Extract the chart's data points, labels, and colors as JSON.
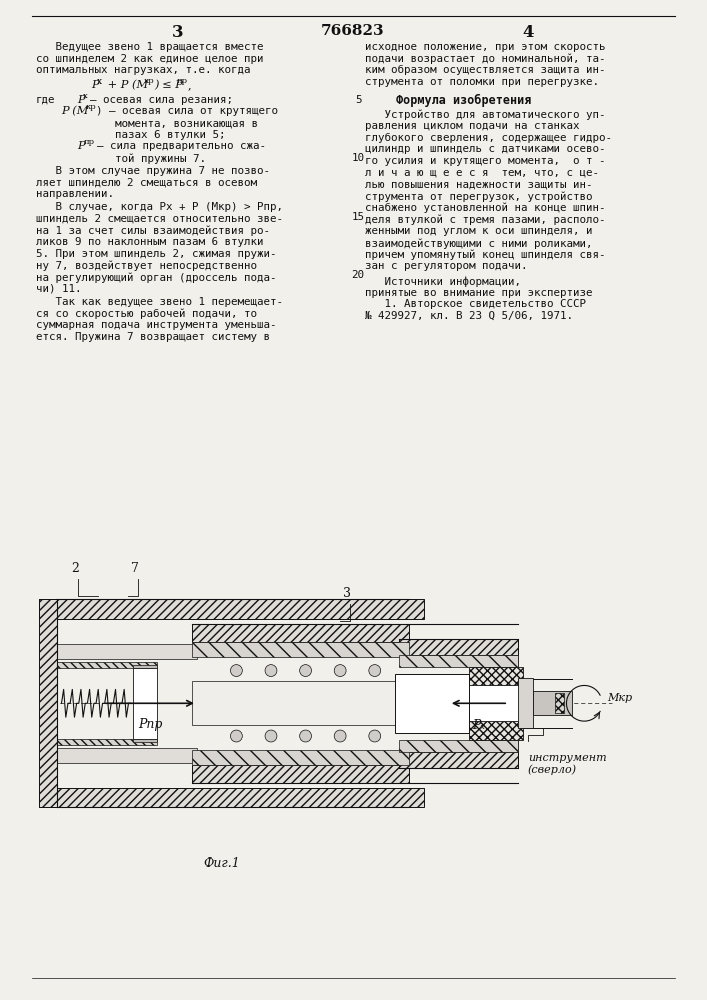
{
  "page_number_left": "3",
  "patent_number": "766823",
  "page_number_right": "4",
  "background_color": "#f2f0eb",
  "text_color": "#1a1a1a",
  "left_col_lines": [
    "   Ведущее звено 1 вращается вместе",
    "со шпинделем 2 как единое целое при",
    "оптимальных нагрузках, т.е. когда"
  ],
  "left_para1": [
    "   В этом случае пружина 7 не позво-",
    "ляет шпинделю 2 смещаться в осевом",
    "направлении."
  ],
  "left_para2": [
    "   В случае, когда Px + P (Mкр) > Pпр,",
    "шпиндель 2 смещается относительно зве-",
    "на 1 за счет силы взаимодействия ро-",
    "ликов 9 по наклонным пазам 6 втулки",
    "5. При этом шпиндель 2, сжимая пружи-",
    "ну 7, воздействует непосредственно",
    "на регулирующий орган (дроссель пода-",
    "чи) 11."
  ],
  "left_para3": [
    "   Так как ведущее звено 1 перемещает-",
    "ся со скоростью рабочей подачи, то",
    "суммарная подача инструмента уменьша-",
    "ется. Пружина 7 возвращает систему в"
  ],
  "right_para0": [
    "исходное положение, при этом скорость",
    "подачи возрастает до номинальной, та-",
    "ким образом осуществляется защита ин-",
    "струмента от поломки при перегрузке."
  ],
  "formula_header": "Формула изобретения",
  "right_claim_lines": [
    "   Устройство для автоматического уп-",
    "равления циклом подачи на станках",
    "глубокого сверления, содержащее гидро-",
    "цилиндр и шпиндель с датчиками осево-",
    "го усилия и крутящего момента,  о т -",
    "л и ч а ю щ е е с я  тем, что, с це-",
    "лью повышения надежности защиты ин-",
    "струмента от перегрузок, устройство",
    "снабжено установленной на конце шпин-",
    "деля втулкой с тремя пазами, располо-",
    "женными под углом к оси шпинделя, и",
    "взаимодействующими с ними роликами,",
    "причем упомянутый конец шпинделя свя-",
    "зан с регулятором подачи."
  ],
  "sources_line1": "   Источники информации,",
  "sources_line2": "принятые во внимание при экспертизе",
  "sources_line3": "   1. Авторское свидетельство СССР",
  "sources_line4": "№ 429927, кл. В 23 Q 5/06, 1971.",
  "line_numbers": [
    "5",
    "10",
    "15",
    "20"
  ],
  "fig_label": "Фиг.1",
  "instrument_label1": "инструмент",
  "instrument_label2": "(сверло)",
  "hatch_color": "#555555",
  "line_color": "#111111"
}
